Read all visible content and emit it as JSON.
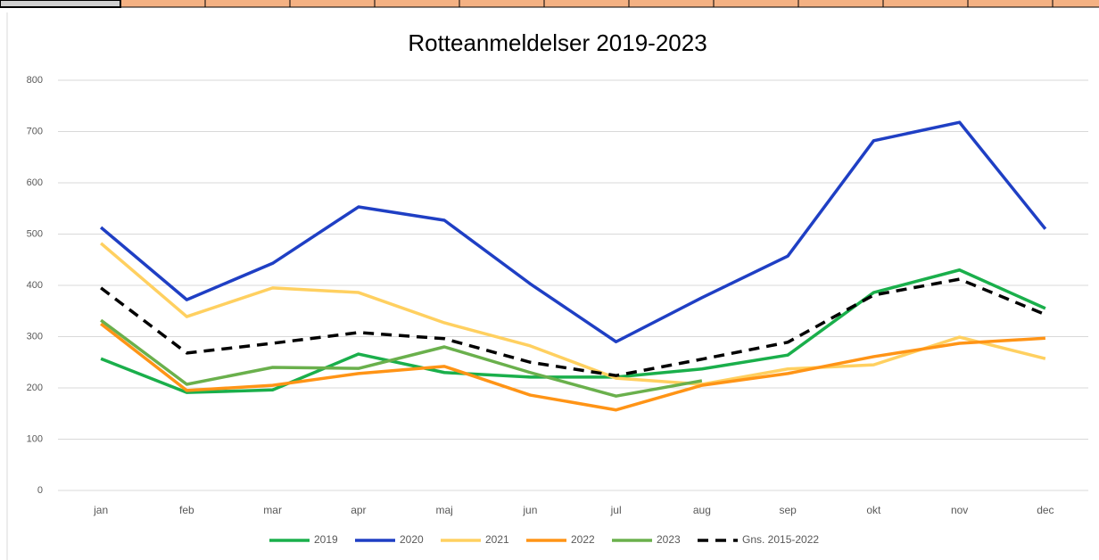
{
  "chart_data": {
    "type": "line",
    "title": "Rotteanmeldelser 2019-2023",
    "categories": [
      "jan",
      "feb",
      "mar",
      "apr",
      "maj",
      "jun",
      "jul",
      "aug",
      "sep",
      "okt",
      "nov",
      "dec"
    ],
    "series": [
      {
        "name": "2019",
        "color": "#1aaf4b",
        "values": [
          257,
          191,
          196,
          266,
          230,
          221,
          221,
          237,
          264,
          386,
          430,
          355
        ]
      },
      {
        "name": "2020",
        "color": "#1f3fc4",
        "values": [
          513,
          372,
          443,
          553,
          527,
          403,
          290,
          376,
          457,
          682,
          718,
          510
        ]
      },
      {
        "name": "2021",
        "color": "#ffd060",
        "values": [
          482,
          339,
          395,
          386,
          327,
          282,
          219,
          207,
          237,
          245,
          299,
          257
        ]
      },
      {
        "name": "2022",
        "color": "#ff9416",
        "values": [
          325,
          195,
          205,
          228,
          242,
          186,
          157,
          205,
          228,
          261,
          287,
          297
        ]
      },
      {
        "name": "2023",
        "color": "#6ab04c",
        "values": [
          332,
          207,
          240,
          238,
          280,
          230,
          184,
          214,
          null,
          null,
          null,
          null
        ]
      },
      {
        "name": "Gns. 2015-2022",
        "color": "#000000",
        "dashed": true,
        "values": [
          395,
          268,
          287,
          308,
          296,
          250,
          224,
          256,
          289,
          381,
          412,
          343
        ]
      }
    ],
    "ylim": [
      0,
      800
    ],
    "yticks": [
      0,
      100,
      200,
      300,
      400,
      500,
      600,
      700,
      800
    ],
    "grid": true,
    "legend": "bottom"
  }
}
